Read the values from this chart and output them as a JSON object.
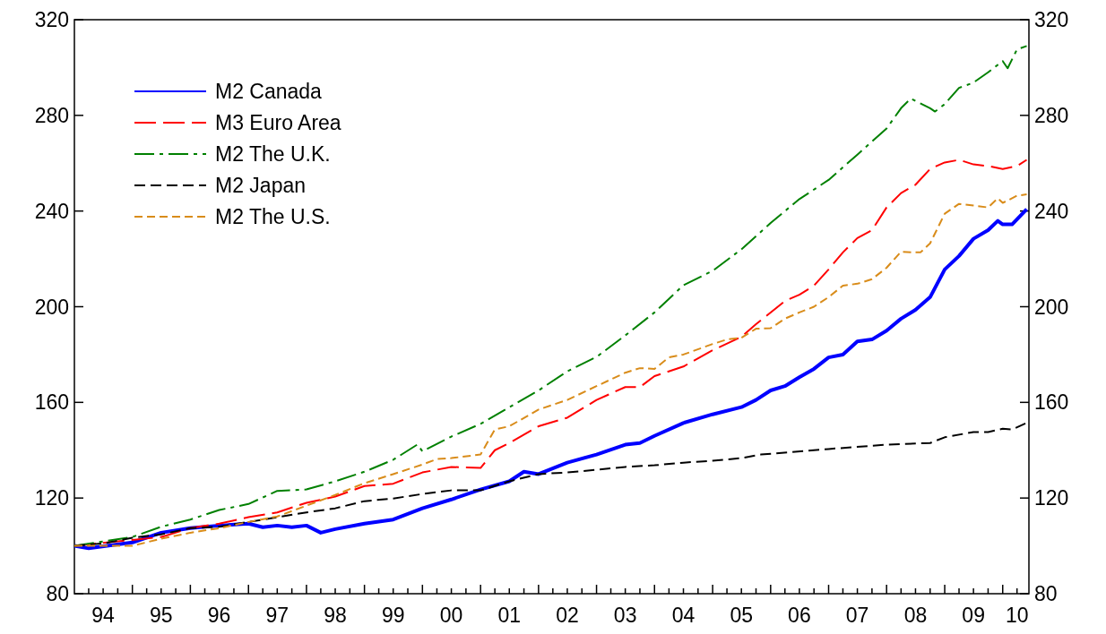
{
  "chart_data": {
    "type": "line",
    "xlim": [
      "1994-01-01",
      "2010-06-15"
    ],
    "xticks": [
      {
        "value": "1994-04",
        "label": null
      },
      {
        "value": "1994-07",
        "label": "94"
      },
      {
        "value": "1994-10",
        "label": null
      },
      {
        "value": "1995-01",
        "label": null
      },
      {
        "value": "1995-04",
        "label": null
      },
      {
        "value": "1995-07",
        "label": "95"
      },
      {
        "value": "1995-10",
        "label": null
      },
      {
        "value": "1996-01",
        "label": null
      },
      {
        "value": "1996-04",
        "label": null
      },
      {
        "value": "1996-07",
        "label": "96"
      },
      {
        "value": "1996-10",
        "label": null
      },
      {
        "value": "1997-01",
        "label": null
      },
      {
        "value": "1997-04",
        "label": null
      },
      {
        "value": "1997-07",
        "label": "97"
      },
      {
        "value": "1997-10",
        "label": null
      },
      {
        "value": "1998-01",
        "label": null
      },
      {
        "value": "1998-04",
        "label": null
      },
      {
        "value": "1998-07",
        "label": "98"
      },
      {
        "value": "1998-10",
        "label": null
      },
      {
        "value": "1999-01",
        "label": null
      },
      {
        "value": "1999-04",
        "label": null
      },
      {
        "value": "1999-07",
        "label": "99"
      },
      {
        "value": "1999-10",
        "label": null
      },
      {
        "value": "2000-01",
        "label": null
      },
      {
        "value": "2000-04",
        "label": null
      },
      {
        "value": "2000-07",
        "label": "00"
      },
      {
        "value": "2000-10",
        "label": null
      },
      {
        "value": "2001-01",
        "label": null
      },
      {
        "value": "2001-04",
        "label": null
      },
      {
        "value": "2001-07",
        "label": "01"
      },
      {
        "value": "2001-10",
        "label": null
      },
      {
        "value": "2002-01",
        "label": null
      },
      {
        "value": "2002-04",
        "label": null
      },
      {
        "value": "2002-07",
        "label": "02"
      },
      {
        "value": "2002-10",
        "label": null
      },
      {
        "value": "2003-01",
        "label": null
      },
      {
        "value": "2003-04",
        "label": null
      },
      {
        "value": "2003-07",
        "label": "03"
      },
      {
        "value": "2003-10",
        "label": null
      },
      {
        "value": "2004-01",
        "label": null
      },
      {
        "value": "2004-04",
        "label": null
      },
      {
        "value": "2004-07",
        "label": "04"
      },
      {
        "value": "2004-10",
        "label": null
      },
      {
        "value": "2005-01",
        "label": null
      },
      {
        "value": "2005-04",
        "label": null
      },
      {
        "value": "2005-07",
        "label": "05"
      },
      {
        "value": "2005-10",
        "label": null
      },
      {
        "value": "2006-01",
        "label": null
      },
      {
        "value": "2006-04",
        "label": null
      },
      {
        "value": "2006-07",
        "label": "06"
      },
      {
        "value": "2006-10",
        "label": null
      },
      {
        "value": "2007-01",
        "label": null
      },
      {
        "value": "2007-04",
        "label": null
      },
      {
        "value": "2007-07",
        "label": "07"
      },
      {
        "value": "2007-10",
        "label": null
      },
      {
        "value": "2008-01",
        "label": null
      },
      {
        "value": "2008-04",
        "label": null
      },
      {
        "value": "2008-07",
        "label": "08"
      },
      {
        "value": "2008-10",
        "label": null
      },
      {
        "value": "2009-01",
        "label": null
      },
      {
        "value": "2009-04",
        "label": null
      },
      {
        "value": "2009-07",
        "label": "09"
      },
      {
        "value": "2009-10",
        "label": null
      },
      {
        "value": "2010-01",
        "label": null
      },
      {
        "value": "2010-04",
        "label": "10"
      }
    ],
    "ylim": [
      80,
      320
    ],
    "yticks": [
      80,
      120,
      160,
      200,
      240,
      280,
      320
    ],
    "y2lim": [
      80,
      320
    ],
    "y2ticks": [
      80,
      120,
      160,
      200,
      240,
      280,
      320
    ],
    "grid": false,
    "legend": "top left",
    "series": [
      {
        "name": "M2 Canada",
        "color": "#0000ff",
        "line_style": "solid",
        "x": [
          "1994-01",
          "1994-04",
          "1995-01",
          "1995-07",
          "1996-01",
          "1996-07",
          "1997-01",
          "1997-04",
          "1997-07",
          "1997-10",
          "1998-01",
          "1998-04",
          "1998-07",
          "1999-01",
          "1999-07",
          "2000-01",
          "2000-07",
          "2001-01",
          "2001-07",
          "2001-10",
          "2002-01",
          "2002-07",
          "2003-01",
          "2003-07",
          "2003-10",
          "2004-01",
          "2004-07",
          "2005-01",
          "2005-07",
          "2005-10",
          "2006-01",
          "2006-04",
          "2006-07",
          "2006-10",
          "2007-01",
          "2007-04",
          "2007-07",
          "2007-10",
          "2008-01",
          "2008-04",
          "2008-07",
          "2008-10",
          "2009-01",
          "2009-04",
          "2009-07",
          "2009-10",
          "2009-12",
          "2010-01",
          "2010-03",
          "2010-06"
        ],
        "values": [
          100,
          99,
          101.4,
          105.5,
          107.4,
          108.5,
          109.3,
          107.8,
          108.5,
          107.8,
          108.5,
          105.5,
          107,
          109.3,
          111,
          115.7,
          119.4,
          123.6,
          127,
          131,
          130,
          134.8,
          138.2,
          142.3,
          143,
          146,
          151.4,
          155,
          158,
          161,
          165,
          166.8,
          170.5,
          174,
          178.8,
          180,
          185.5,
          186.3,
          190,
          195,
          198.7,
          204,
          215.6,
          221.2,
          228.4,
          232,
          235.9,
          234.4,
          234.4,
          240.8
        ]
      },
      {
        "name": "M3 Euro Area",
        "color": "#ff0000",
        "line_style": "dashed",
        "x": [
          "1994-01",
          "1995-01",
          "1995-07",
          "1996-01",
          "1996-07",
          "1997-01",
          "1997-07",
          "1998-01",
          "1998-07",
          "1999-01",
          "1999-07",
          "2000-01",
          "2000-07",
          "2001-01",
          "2001-04",
          "2001-07",
          "2002-01",
          "2002-07",
          "2003-01",
          "2003-07",
          "2003-10",
          "2004-01",
          "2004-07",
          "2005-01",
          "2005-07",
          "2005-10",
          "2006-01",
          "2006-04",
          "2006-07",
          "2006-10",
          "2007-01",
          "2007-04",
          "2007-07",
          "2007-10",
          "2008-01",
          "2008-04",
          "2008-07",
          "2008-10",
          "2009-01",
          "2009-04",
          "2009-07",
          "2009-10",
          "2010-01",
          "2010-04",
          "2010-06"
        ],
        "values": [
          100,
          102.5,
          103.7,
          107.4,
          109.3,
          112,
          114,
          118,
          120.6,
          125,
          126,
          130.7,
          133,
          132.6,
          140,
          143,
          150,
          153.6,
          161,
          166.4,
          166.4,
          171,
          175,
          181.8,
          187.4,
          192.7,
          197.6,
          202.4,
          205,
          208.8,
          215.6,
          222.7,
          228.7,
          232,
          241.5,
          247.5,
          251,
          257.6,
          260.3,
          261.4,
          259.5,
          258.8,
          257.6,
          258.8,
          261.4
        ]
      },
      {
        "name": "M2 The U.K.",
        "color": "#008000",
        "line_style": "dashed",
        "x": [
          "1994-01",
          "1995-01",
          "1995-07",
          "1996-01",
          "1996-07",
          "1997-01",
          "1997-07",
          "1998-01",
          "1998-07",
          "1999-01",
          "1999-07",
          "1999-12",
          "2000-01",
          "2000-07",
          "2001-01",
          "2001-07",
          "2002-01",
          "2002-07",
          "2003-01",
          "2003-07",
          "2004-01",
          "2004-07",
          "2005-01",
          "2005-07",
          "2006-01",
          "2006-07",
          "2007-01",
          "2007-07",
          "2008-01",
          "2008-04",
          "2008-06",
          "2008-10",
          "2008-11",
          "2009-01",
          "2009-04",
          "2009-07",
          "2009-10",
          "2010-01",
          "2010-02",
          "2010-04",
          "2010-06"
        ],
        "values": [
          100,
          103.7,
          108,
          111,
          115,
          117.5,
          123,
          123.6,
          127,
          131,
          136,
          142.4,
          139.5,
          145.7,
          151,
          158,
          165,
          173,
          179,
          188,
          197.6,
          209,
          215,
          224,
          235,
          245,
          253,
          263.6,
          274.5,
          283,
          287,
          283,
          281.6,
          284.7,
          291.5,
          293.7,
          298,
          302.7,
          299.7,
          307.6,
          309
        ]
      },
      {
        "name": "M2 Japan",
        "color": "#000000",
        "line_style": "dashed",
        "x": [
          "1994-01",
          "1994-07",
          "1995-01",
          "1995-07",
          "1996-01",
          "1996-07",
          "1997-01",
          "1997-07",
          "1998-01",
          "1998-07",
          "1999-01",
          "1999-07",
          "2000-01",
          "2000-07",
          "2001-01",
          "2001-07",
          "2002-01",
          "2002-07",
          "2003-01",
          "2003-07",
          "2004-01",
          "2004-07",
          "2005-01",
          "2005-07",
          "2005-11",
          "2007-01",
          "2008-01",
          "2008-10",
          "2009-01",
          "2009-07",
          "2009-10",
          "2010-01",
          "2010-03",
          "2010-06"
        ],
        "values": [
          100,
          101,
          103.4,
          104.8,
          107.4,
          108,
          110,
          112,
          114,
          115.7,
          118.7,
          119.8,
          121.7,
          123.2,
          123.2,
          127,
          130,
          130.7,
          131.8,
          133,
          133.7,
          134.8,
          135.6,
          136.7,
          138.2,
          140.5,
          142.3,
          143,
          145.4,
          147.6,
          147.6,
          149,
          148.6,
          151.4
        ]
      },
      {
        "name": "M2 The U.S.",
        "color": "#d98c1a",
        "line_style": "dashed",
        "x": [
          "1994-01",
          "1995-01",
          "1995-07",
          "1996-01",
          "1996-07",
          "1997-01",
          "1997-07",
          "1998-01",
          "1998-07",
          "1999-01",
          "1999-07",
          "2000-01",
          "2000-04",
          "2000-07",
          "2001-01",
          "2001-04",
          "2001-07",
          "2002-01",
          "2002-07",
          "2003-01",
          "2003-07",
          "2003-10",
          "2004-01",
          "2004-04",
          "2004-07",
          "2005-01",
          "2005-04",
          "2005-07",
          "2005-10",
          "2006-01",
          "2006-04",
          "2006-07",
          "2006-10",
          "2007-01",
          "2007-04",
          "2007-07",
          "2007-10",
          "2008-01",
          "2008-04",
          "2008-07",
          "2008-08",
          "2008-10",
          "2009-01",
          "2009-04",
          "2009-07",
          "2009-10",
          "2009-12",
          "2010-01",
          "2010-04",
          "2010-06"
        ],
        "values": [
          100,
          100,
          103,
          105.5,
          107.4,
          110,
          112.3,
          116.8,
          121.3,
          126.2,
          130,
          134,
          136.3,
          136.7,
          138.2,
          148.7,
          150,
          157,
          161,
          166.8,
          172.4,
          174.3,
          174,
          178.8,
          180,
          184.4,
          186.3,
          187,
          190.8,
          191,
          195,
          197.6,
          200,
          204,
          208.8,
          209.6,
          211.5,
          216.3,
          223,
          222.7,
          222.7,
          226.5,
          238.9,
          243,
          242.3,
          241.5,
          245.3,
          243.4,
          246.4,
          247
        ]
      }
    ]
  }
}
